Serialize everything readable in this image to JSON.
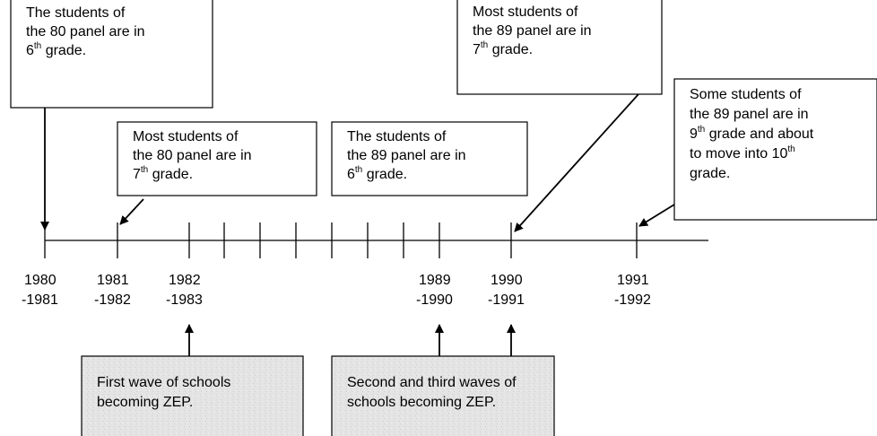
{
  "note_boxes": [
    {
      "lines": [
        [
          {
            "text": "The students of"
          }
        ],
        [
          {
            "text": "the 80 panel are in"
          }
        ],
        [
          {
            "text": "6"
          },
          {
            "sup": "th"
          },
          {
            "text": " grade."
          }
        ]
      ]
    },
    {
      "lines": [
        [
          {
            "text": "Most students of"
          }
        ],
        [
          {
            "text": "the 80 panel are in"
          }
        ],
        [
          {
            "text": "7"
          },
          {
            "sup": "th"
          },
          {
            "text": " grade."
          }
        ]
      ]
    },
    {
      "lines": [
        [
          {
            "text": "The students of"
          }
        ],
        [
          {
            "text": "the 89 panel are in"
          }
        ],
        [
          {
            "text": "6"
          },
          {
            "sup": "th"
          },
          {
            "text": " grade."
          }
        ]
      ]
    },
    {
      "lines": [
        [
          {
            "text": "Most students of"
          }
        ],
        [
          {
            "text": "the 89 panel are in"
          }
        ],
        [
          {
            "text": "7"
          },
          {
            "sup": "th"
          },
          {
            "text": " grade."
          }
        ]
      ]
    },
    {
      "lines": [
        [
          {
            "text": "Some students of"
          }
        ],
        [
          {
            "text": "the 89 panel are in"
          }
        ],
        [
          {
            "text": "9"
          },
          {
            "sup": "th"
          },
          {
            "text": " grade and about"
          }
        ],
        [
          {
            "text": "to move into 10"
          },
          {
            "sup": "th"
          }
        ],
        [
          {
            "text": "grade."
          }
        ]
      ]
    }
  ],
  "years": [
    {
      "start": "1980",
      "end": "-1981"
    },
    {
      "start": "1981",
      "end": "-1982"
    },
    {
      "start": "1982",
      "end": "-1983"
    },
    {
      "start": "1989",
      "end": "-1990"
    },
    {
      "start": "1990",
      "end": "-1991"
    },
    {
      "start": "1991",
      "end": "-1992"
    }
  ],
  "wave_boxes": [
    {
      "lines": [
        [
          {
            "text": "First wave of schools"
          }
        ],
        [
          {
            "text": "becoming ZEP."
          }
        ]
      ]
    },
    {
      "lines": [
        [
          {
            "text": "Second and third waves of"
          }
        ],
        [
          {
            "text": "schools becoming ZEP."
          }
        ]
      ]
    }
  ]
}
